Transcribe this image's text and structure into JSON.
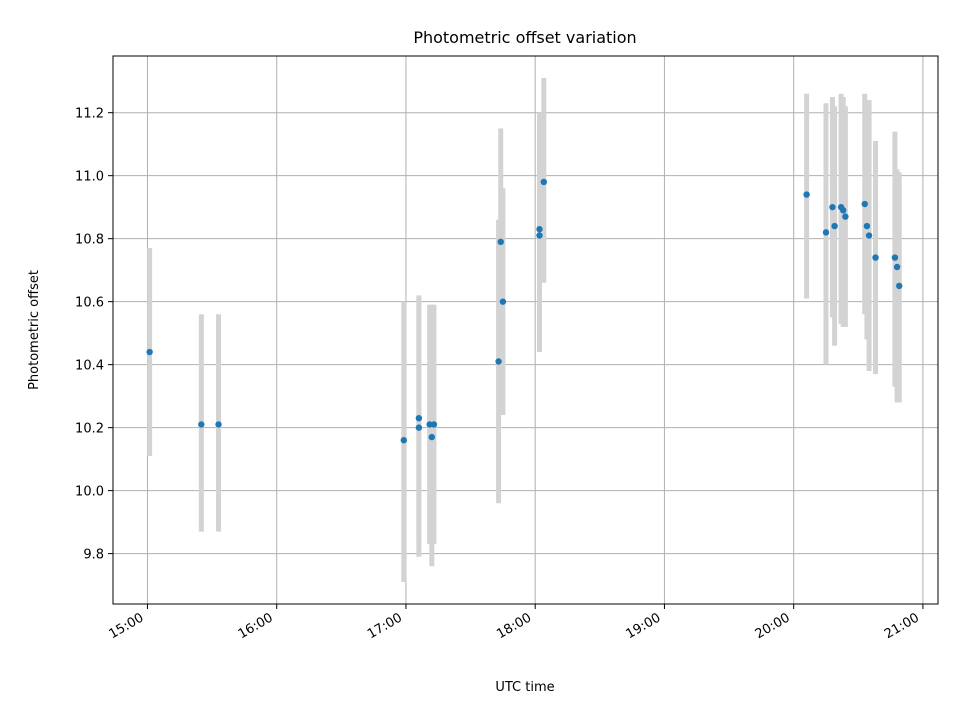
{
  "chart_data": {
    "type": "scatter",
    "title": "Photometric offset variation",
    "xlabel": "UTC time",
    "ylabel": "Photometric offset",
    "grid": true,
    "x_range": [
      "14:44",
      "21:07"
    ],
    "y_range": [
      9.64,
      11.38
    ],
    "x_ticks": [
      "15:00",
      "16:00",
      "17:00",
      "18:00",
      "19:00",
      "20:00",
      "21:00"
    ],
    "y_ticks": [
      "9.8",
      "10.0",
      "10.2",
      "10.4",
      "10.6",
      "10.8",
      "11.0",
      "11.2"
    ],
    "point_color": "#1f77b4",
    "errorbar_color": "#d3d3d3",
    "series": [
      {
        "points": [
          {
            "x": "15:01",
            "y": 10.44,
            "lo": 10.11,
            "hi": 10.77
          },
          {
            "x": "15:25",
            "y": 10.21,
            "lo": 9.87,
            "hi": 10.56
          },
          {
            "x": "15:33",
            "y": 10.21,
            "lo": 9.87,
            "hi": 10.56
          },
          {
            "x": "16:59",
            "y": 10.16,
            "lo": 9.71,
            "hi": 10.6
          },
          {
            "x": "17:06",
            "y": 10.2,
            "lo": 9.79,
            "hi": 10.62
          },
          {
            "x": "17:06",
            "y": 10.23,
            "lo": 9.84,
            "hi": 10.61
          },
          {
            "x": "17:11",
            "y": 10.21,
            "lo": 9.83,
            "hi": 10.59
          },
          {
            "x": "17:12",
            "y": 10.17,
            "lo": 9.76,
            "hi": 10.59
          },
          {
            "x": "17:13",
            "y": 10.21,
            "lo": 9.83,
            "hi": 10.59
          },
          {
            "x": "17:43",
            "y": 10.41,
            "lo": 9.96,
            "hi": 10.86
          },
          {
            "x": "17:44",
            "y": 10.79,
            "lo": 10.44,
            "hi": 11.15
          },
          {
            "x": "17:45",
            "y": 10.6,
            "lo": 10.24,
            "hi": 10.96
          },
          {
            "x": "18:02",
            "y": 10.83,
            "lo": 10.44,
            "hi": 11.2
          },
          {
            "x": "18:02",
            "y": 10.81,
            "lo": 10.44,
            "hi": 11.18
          },
          {
            "x": "18:04",
            "y": 10.98,
            "lo": 10.66,
            "hi": 11.31
          },
          {
            "x": "20:06",
            "y": 10.94,
            "lo": 10.61,
            "hi": 11.26
          },
          {
            "x": "20:15",
            "y": 10.82,
            "lo": 10.4,
            "hi": 11.23
          },
          {
            "x": "20:18",
            "y": 10.9,
            "lo": 10.55,
            "hi": 11.25
          },
          {
            "x": "20:19",
            "y": 10.84,
            "lo": 10.46,
            "hi": 11.22
          },
          {
            "x": "20:22",
            "y": 10.9,
            "lo": 10.53,
            "hi": 11.26
          },
          {
            "x": "20:23",
            "y": 10.89,
            "lo": 10.52,
            "hi": 11.25
          },
          {
            "x": "20:24",
            "y": 10.87,
            "lo": 10.52,
            "hi": 11.22
          },
          {
            "x": "20:33",
            "y": 10.91,
            "lo": 10.56,
            "hi": 11.26
          },
          {
            "x": "20:34",
            "y": 10.84,
            "lo": 10.48,
            "hi": 11.21
          },
          {
            "x": "20:35",
            "y": 10.81,
            "lo": 10.38,
            "hi": 11.24
          },
          {
            "x": "20:38",
            "y": 10.74,
            "lo": 10.37,
            "hi": 11.11
          },
          {
            "x": "20:47",
            "y": 10.74,
            "lo": 10.33,
            "hi": 11.14
          },
          {
            "x": "20:48",
            "y": 10.71,
            "lo": 10.28,
            "hi": 11.02
          },
          {
            "x": "20:49",
            "y": 10.65,
            "lo": 10.28,
            "hi": 11.01
          }
        ]
      }
    ]
  }
}
